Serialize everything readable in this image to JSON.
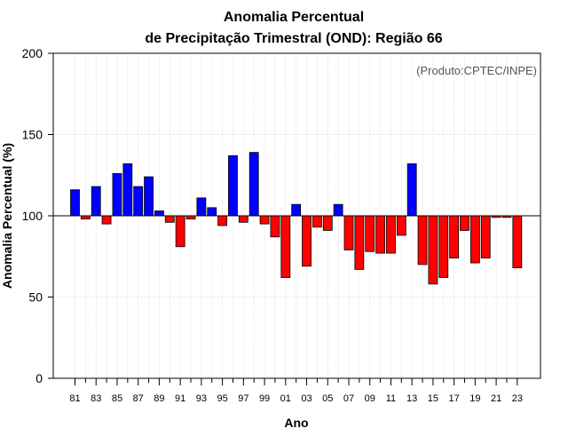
{
  "chart_data": {
    "type": "bar",
    "title_line1": "Anomalia Percentual",
    "title_line2": "de Precipitação Trimestral (OND): Região 66",
    "xlabel": "Ano",
    "ylabel": "Anomalia Percentual (%)",
    "credit": "(Produto:CPTEC/INPE)",
    "ylim": [
      0,
      200
    ],
    "yticks": [
      0,
      50,
      100,
      150,
      200
    ],
    "baseline": 100,
    "grid": true,
    "colors": {
      "above": "#0000ff",
      "below": "#ff0000",
      "edge": "#000000",
      "grid": "#cccccc"
    },
    "categories": [
      "81",
      "82",
      "83",
      "84",
      "85",
      "86",
      "87",
      "88",
      "89",
      "90",
      "91",
      "92",
      "93",
      "94",
      "95",
      "96",
      "97",
      "98",
      "99",
      "00",
      "01",
      "02",
      "03",
      "04",
      "05",
      "06",
      "07",
      "08",
      "09",
      "10",
      "11",
      "12",
      "13",
      "14",
      "15",
      "16",
      "17",
      "18",
      "19",
      "20",
      "21",
      "22",
      "23"
    ],
    "tick_labels": [
      "81",
      "83",
      "85",
      "87",
      "89",
      "91",
      "93",
      "95",
      "97",
      "99",
      "01",
      "03",
      "05",
      "07",
      "09",
      "11",
      "13",
      "15",
      "17",
      "19",
      "21",
      "23"
    ],
    "values": [
      116,
      98,
      118,
      95,
      126,
      132,
      118,
      124,
      103,
      96,
      81,
      98,
      111,
      105,
      94,
      137,
      96,
      139,
      95,
      87,
      62,
      107,
      69,
      93,
      91,
      107,
      79,
      67,
      78,
      77,
      77,
      88,
      132,
      70,
      58,
      62,
      74,
      91,
      71,
      74,
      99,
      99,
      68
    ]
  }
}
